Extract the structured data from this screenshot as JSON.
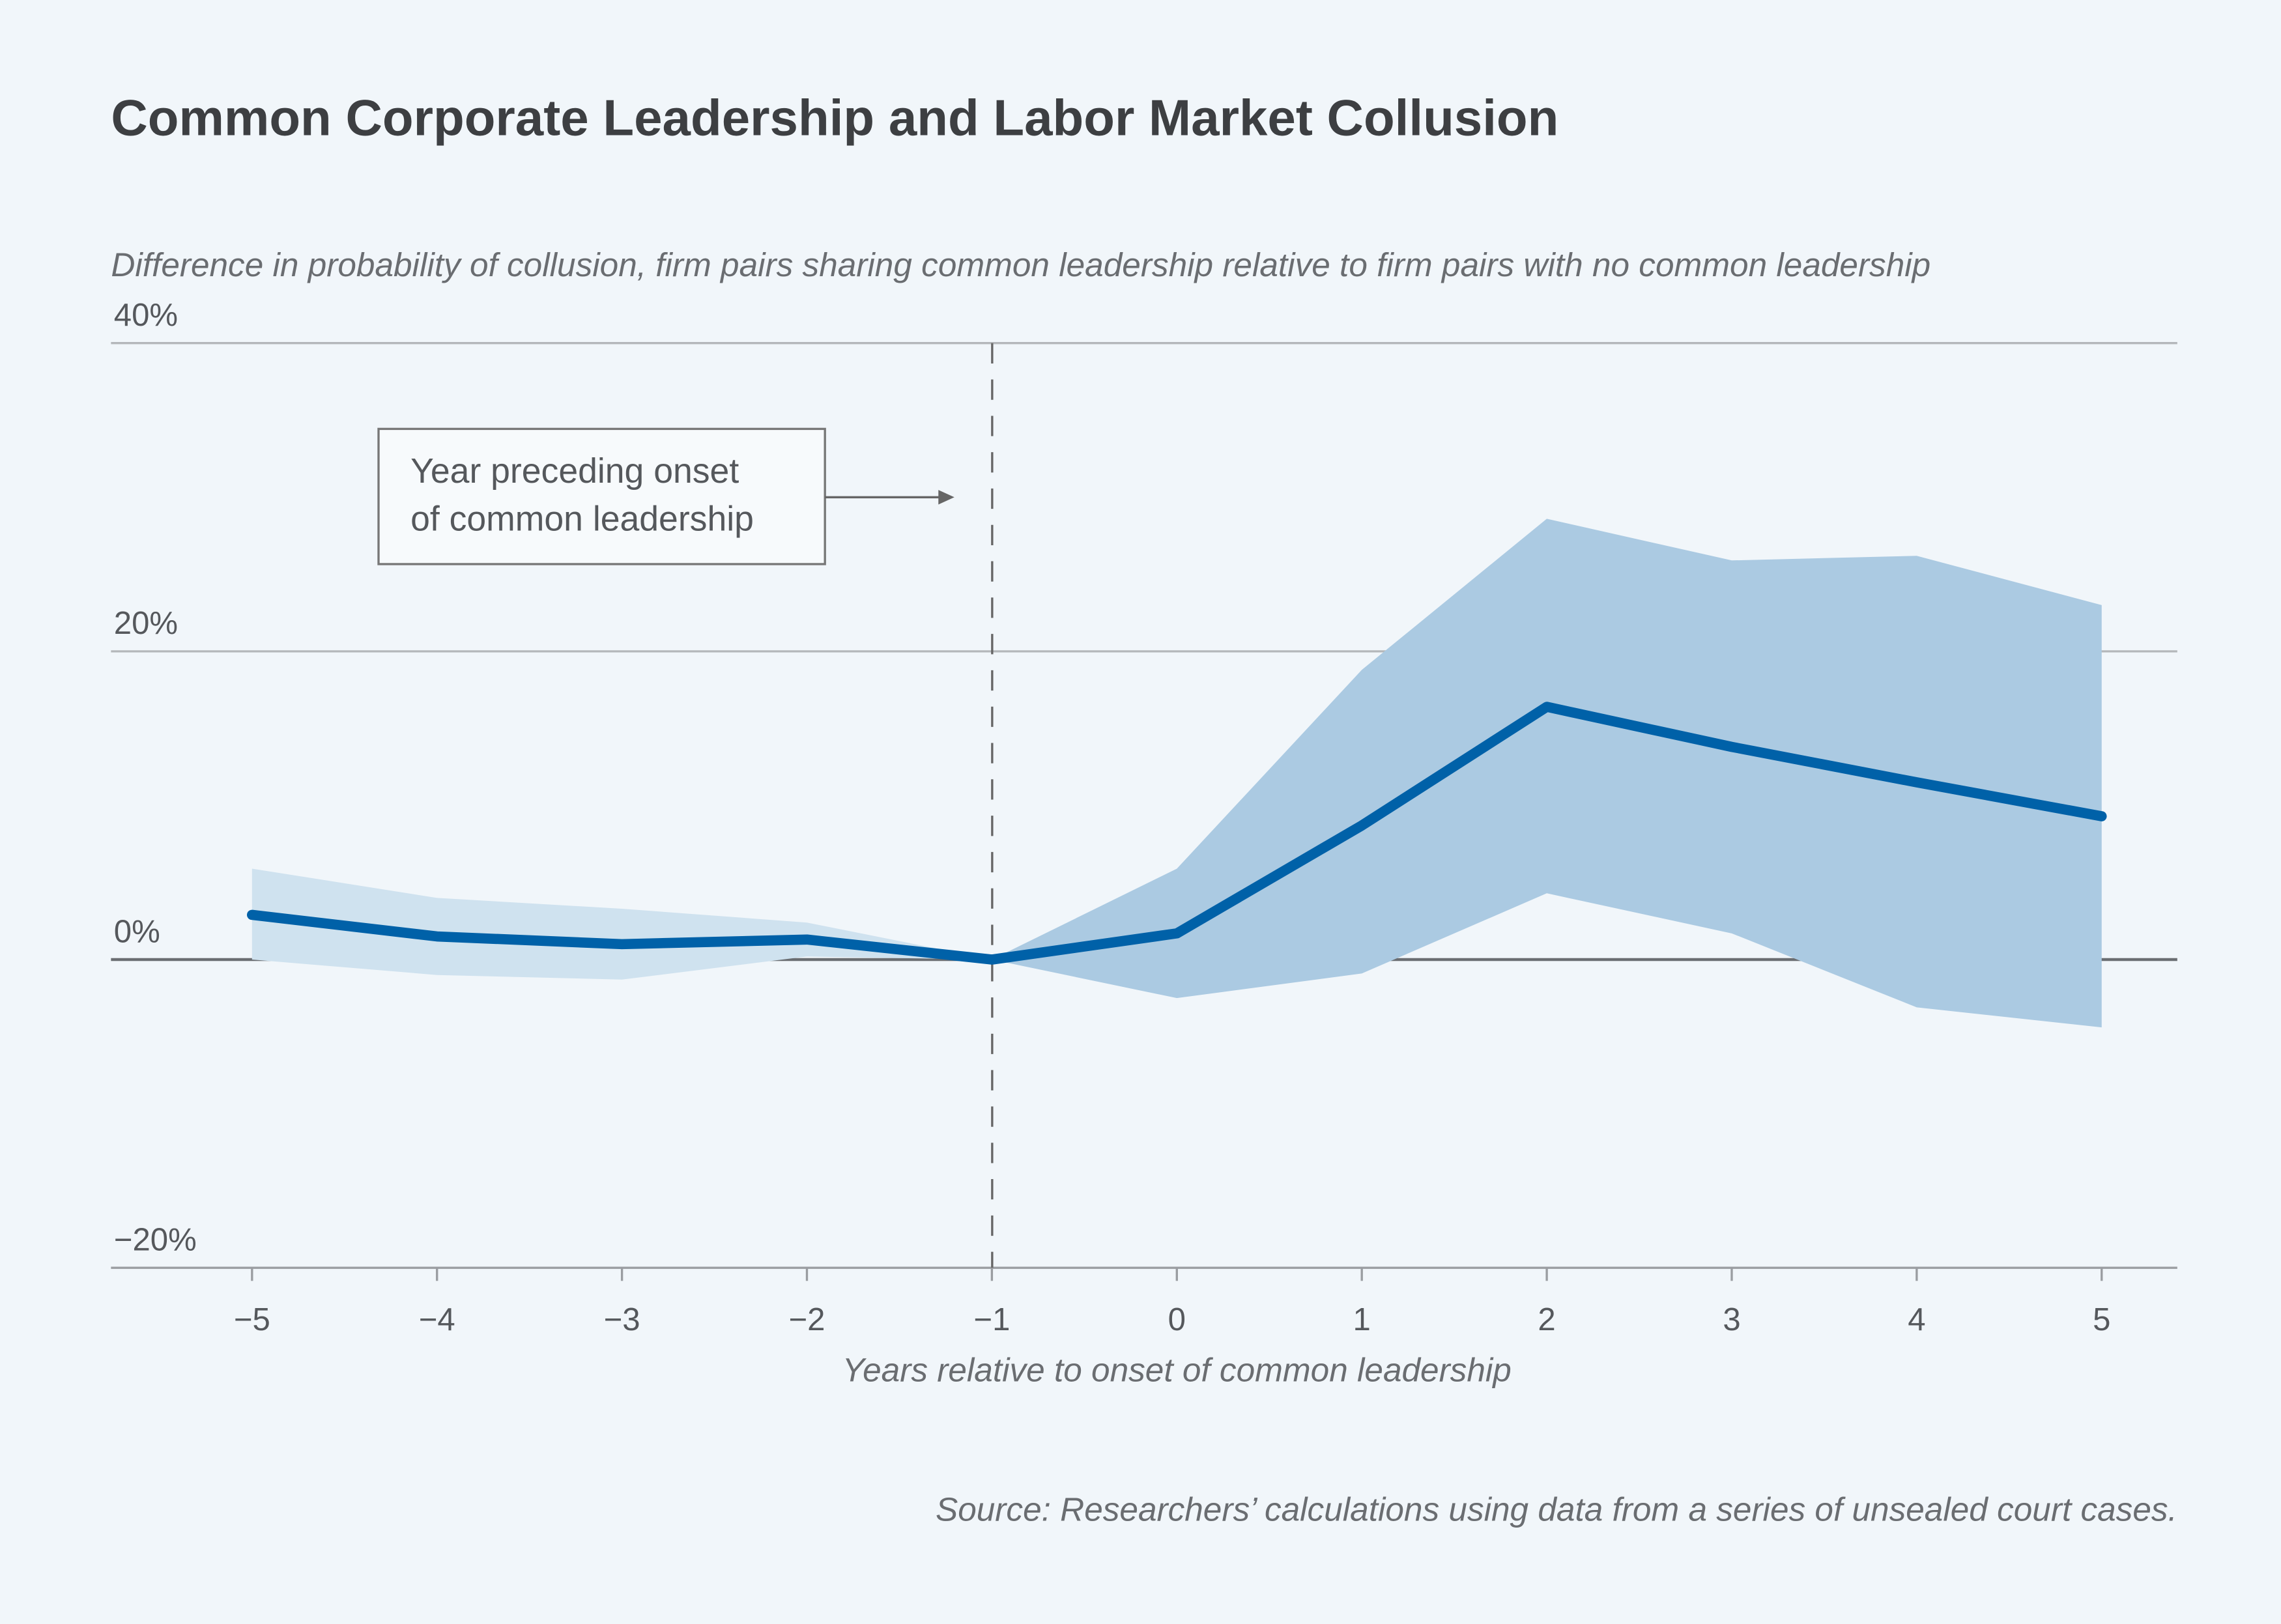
{
  "title": "Common Corporate Leadership and Labor Market Collusion",
  "subtitle": "Difference in probability of collusion, firm pairs sharing common leadership relative to firm pairs with no common leadership",
  "source": "Source: Researchers’ calculations using data from a series of unsealed court cases.",
  "annotation": {
    "line1": "Year preceding onset",
    "line2": "of common leadership"
  },
  "colors": {
    "background": "#f1f6fa",
    "line": "#0061a8",
    "band_pre": "#cfe2ef",
    "band_post": "#abcae2",
    "text": "#3d3f42"
  },
  "chart_data": {
    "type": "line",
    "title": "Common Corporate Leadership and Labor Market Collusion",
    "ylabel": "Difference in probability of collusion, firm pairs sharing common leadership relative to firm pairs with no common leadership",
    "xlabel": "Years relative to onset of common leadership",
    "x": [
      -5,
      -4,
      -3,
      -2,
      -1,
      0,
      1,
      2,
      3,
      4,
      5
    ],
    "xtick_labels": [
      "−5",
      "−4",
      "−3",
      "−2",
      "−1",
      "0",
      "1",
      "2",
      "3",
      "4",
      "5"
    ],
    "ylim": [
      -20,
      40
    ],
    "yticks": [
      40,
      20,
      0,
      -20
    ],
    "ytick_labels": [
      "40%",
      "20%",
      "0%",
      "−20%"
    ],
    "grid": true,
    "reference_line_x": -1,
    "series": [
      {
        "type": "line",
        "values": [
          2.9,
          1.5,
          1.0,
          1.3,
          0.0,
          1.7,
          8.7,
          16.4,
          13.8,
          11.5,
          9.3
        ]
      },
      {
        "type": "confidence_band",
        "upper": [
          5.9,
          4.0,
          3.3,
          2.4,
          0.0,
          5.9,
          18.8,
          28.6,
          25.9,
          26.2,
          23.0
        ],
        "lower": [
          0.0,
          -1.0,
          -1.3,
          0.2,
          0.0,
          -2.5,
          -0.9,
          4.3,
          1.7,
          -3.1,
          -4.4
        ]
      }
    ]
  }
}
